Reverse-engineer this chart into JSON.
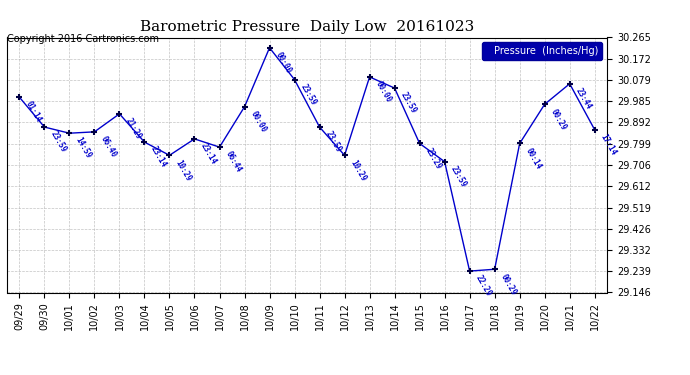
{
  "title": "Barometric Pressure  Daily Low  20161023",
  "copyright": "Copyright 2016 Cartronics.com",
  "legend_label": "Pressure  (Inches/Hg)",
  "dates": [
    "09/29",
    "09/30",
    "10/01",
    "10/02",
    "10/03",
    "10/04",
    "10/05",
    "10/06",
    "10/07",
    "10/08",
    "10/09",
    "10/10",
    "10/11",
    "10/12",
    "10/13",
    "10/14",
    "10/15",
    "10/16",
    "10/17",
    "10/18",
    "10/19",
    "10/20",
    "10/21",
    "10/22"
  ],
  "values": [
    30.003,
    29.872,
    29.845,
    29.851,
    29.93,
    29.806,
    29.748,
    29.82,
    29.784,
    29.961,
    30.22,
    30.08,
    29.872,
    29.748,
    30.092,
    30.043,
    29.8,
    29.72,
    29.24,
    29.248,
    29.8,
    29.972,
    30.062,
    29.86
  ],
  "time_labels": [
    "01:14",
    "23:59",
    "14:59",
    "06:40",
    "21:29",
    "23:14",
    "10:29",
    "23:14",
    "06:44",
    "00:00",
    "00:00",
    "23:59",
    "23:59",
    "10:29",
    "00:00",
    "23:59",
    "23:29",
    "23:59",
    "22:29",
    "00:29",
    "00:14",
    "00:29",
    "23:44",
    "17:14"
  ],
  "ylim": [
    29.146,
    30.265
  ],
  "yticks": [
    29.146,
    29.239,
    29.332,
    29.426,
    29.519,
    29.612,
    29.706,
    29.799,
    29.892,
    29.985,
    30.079,
    30.172,
    30.265
  ],
  "line_color": "#0000cc",
  "marker_color": "#000044",
  "bg_color": "#ffffff",
  "grid_color": "#aaaaaa",
  "title_color": "#000000",
  "label_color": "#0000cc",
  "legend_bg": "#0000aa",
  "legend_text": "#ffffff"
}
